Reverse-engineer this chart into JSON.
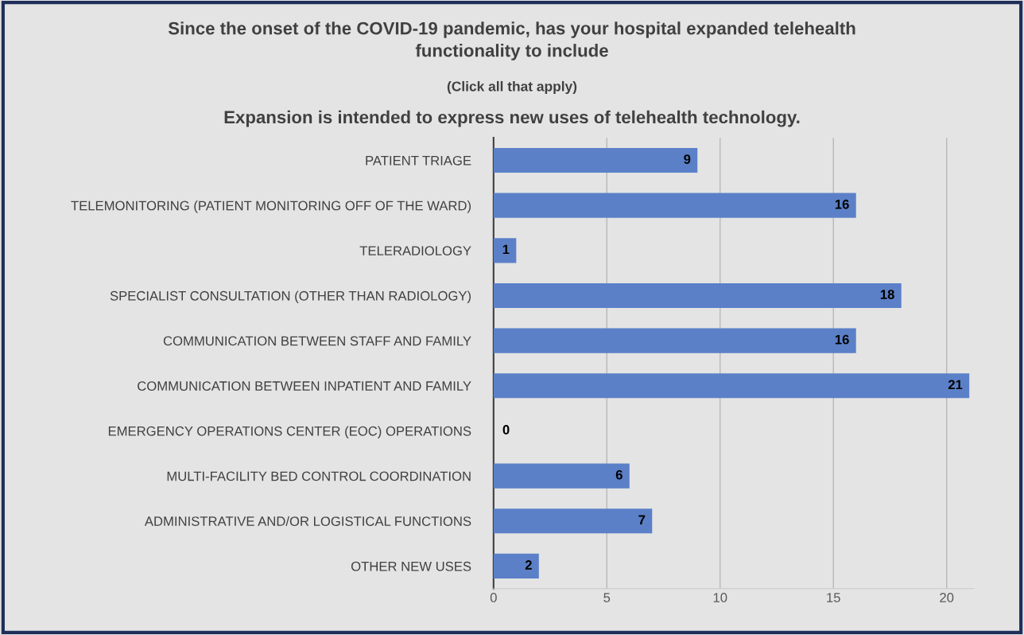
{
  "chart_data": {
    "type": "bar",
    "orientation": "horizontal",
    "title": "Since the onset of the COVID-19 pandemic, has your hospital expanded telehealth\nfunctionality to include",
    "subtitle": "(Click all that apply)",
    "annotations": [
      "Expansion is intended to express new uses of telehealth technology."
    ],
    "categories": [
      "PATIENT TRIAGE",
      "TELEMONITORING (PATIENT MONITORING OFF OF THE WARD)",
      "TELERADIOLOGY",
      "SPECIALIST CONSULTATION (OTHER THAN RADIOLOGY)",
      "COMMUNICATION BETWEEN STAFF AND FAMILY",
      "COMMUNICATION BETWEEN INPATIENT AND FAMILY",
      "EMERGENCY OPERATIONS CENTER (EOC) OPERATIONS",
      "MULTI-FACILITY BED CONTROL COORDINATION",
      "ADMINISTRATIVE AND/OR LOGISTICAL FUNCTIONS",
      "OTHER NEW USES"
    ],
    "values": [
      9,
      16,
      1,
      18,
      16,
      21,
      0,
      6,
      7,
      2
    ],
    "color": "#5b80c8",
    "xlim": [
      0,
      21.2
    ],
    "xticks": [
      0,
      5,
      10,
      15,
      20
    ],
    "grid": "x",
    "data_labels": true
  }
}
